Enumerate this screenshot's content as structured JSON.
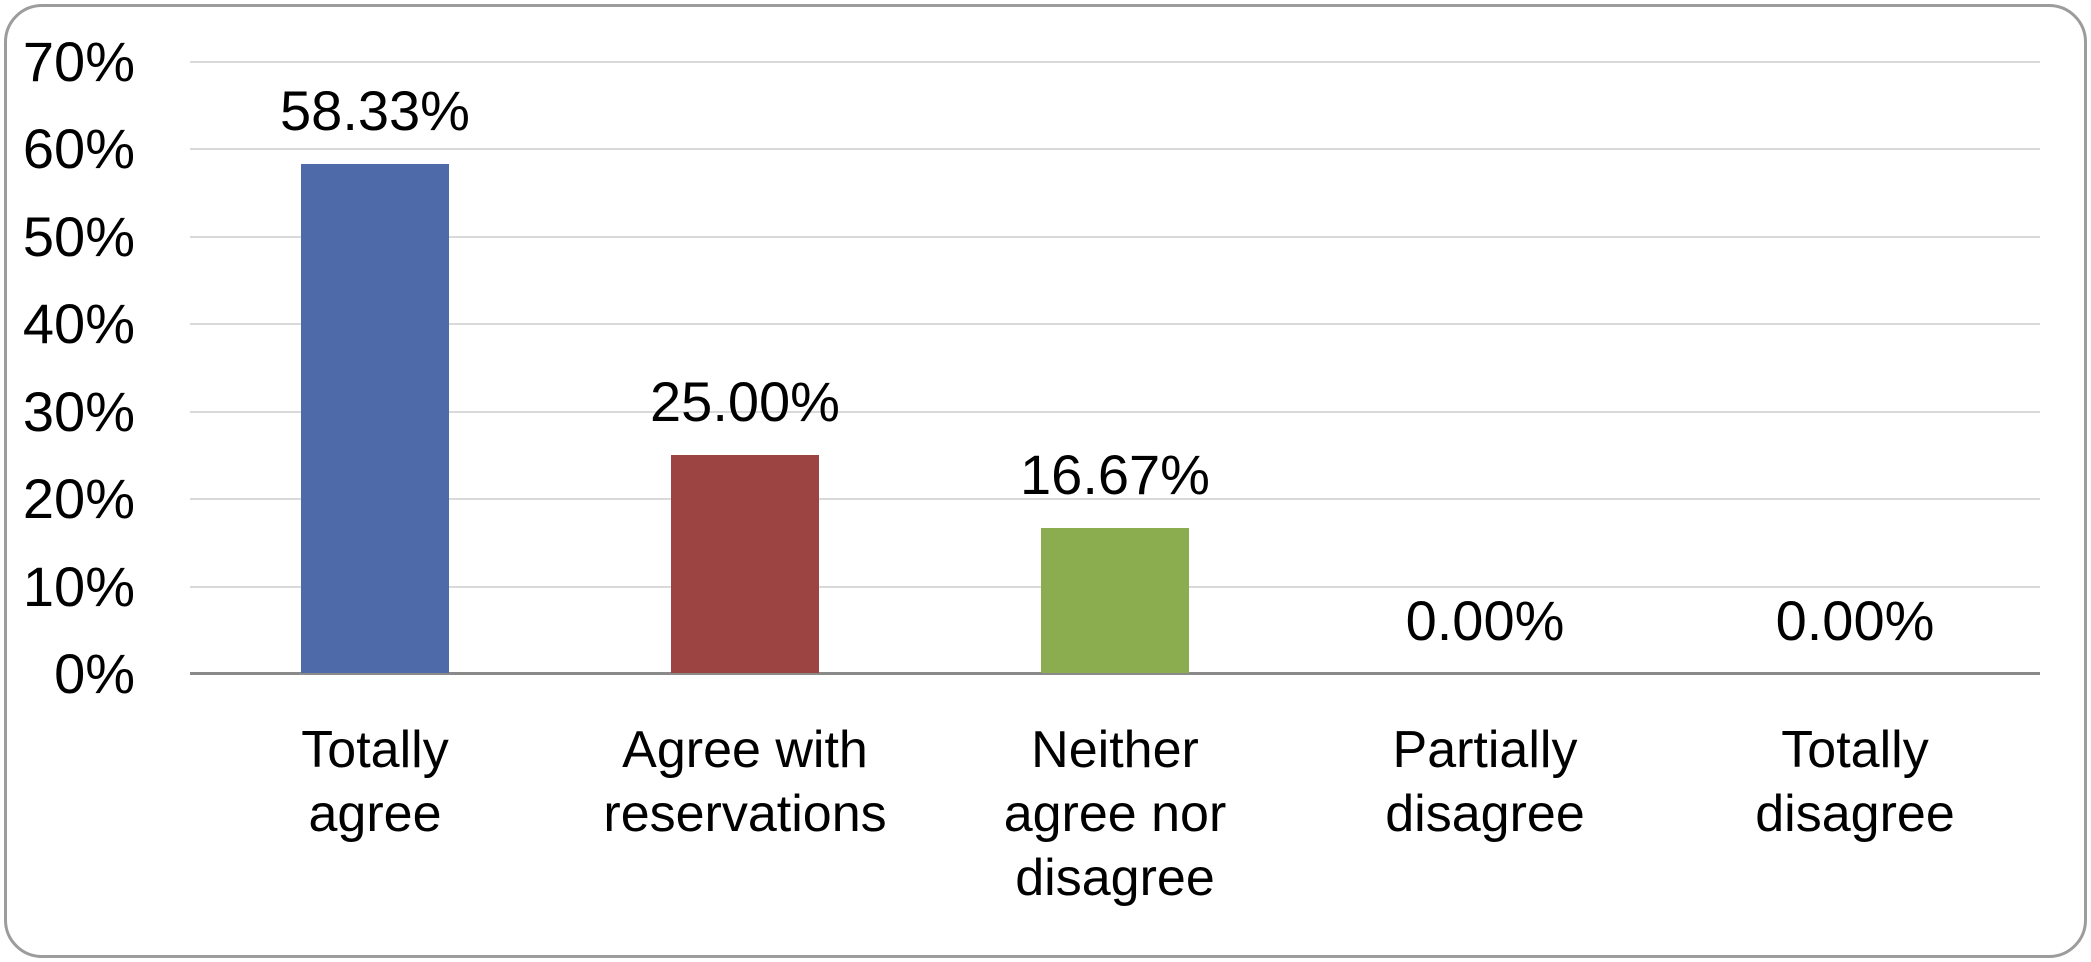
{
  "chart_data": {
    "type": "bar",
    "title": "",
    "xlabel": "",
    "ylabel": "",
    "categories": [
      "Totally agree",
      "Agree with reservations",
      "Neither agree nor disagree",
      "Partially disagree",
      "Totally disagree"
    ],
    "categories_wrapped": [
      [
        "Totally",
        "agree"
      ],
      [
        "Agree with",
        "reservations"
      ],
      [
        "Neither",
        "agree nor",
        "disagree"
      ],
      [
        "Partially",
        "disagree"
      ],
      [
        "Totally",
        "disagree"
      ]
    ],
    "values": [
      58.33,
      25.0,
      16.67,
      0.0,
      0.0
    ],
    "data_labels": [
      "58.33%",
      "25.00%",
      "16.67%",
      "0.00%",
      "0.00%"
    ],
    "bar_colors": [
      "#4F6AA8",
      "#9B4441",
      "#8CAD4F",
      null,
      null
    ],
    "ylim": [
      0,
      70
    ],
    "ytick_step": 10,
    "ytick_labels": [
      "0%",
      "10%",
      "20%",
      "30%",
      "40%",
      "50%",
      "60%",
      "70%"
    ],
    "grid": true,
    "legend": false
  },
  "styles": {
    "background": "#FFFFFF",
    "frame_border_color": "#9C9C9C",
    "gridline_color": "#D9D9D9",
    "axis_line_color": "#8A8A8A",
    "text_color": "#000000"
  }
}
